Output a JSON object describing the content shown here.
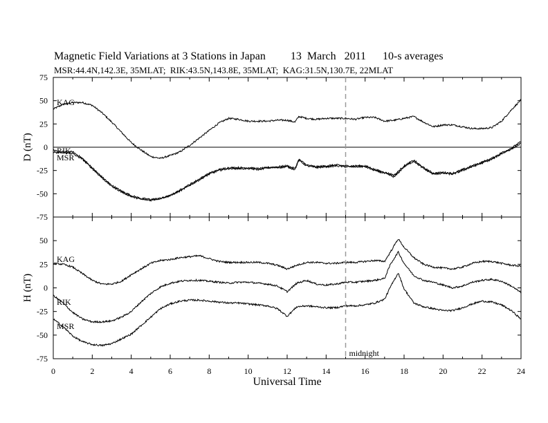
{
  "header": {
    "title": "Magnetic Field Variations at 3 Stations in Japan         13  March   2011      10-s averages",
    "subtitle": "MSR:44.4N,142.3E, 35MLAT;  RIK:43.5N,143.8E, 35MLAT;  KAG:31.5N,130.7E, 22MLAT"
  },
  "chart_data": [
    {
      "type": "line",
      "panel": "D",
      "ylabel": "D (nT)",
      "ylim": [
        -75,
        75
      ],
      "yticks": [
        75,
        50,
        25,
        0,
        -25,
        -50,
        -75
      ],
      "reference_line": 0,
      "series": [
        {
          "name": "KAG",
          "x": [
            0,
            0.5,
            1,
            1.5,
            2,
            2.5,
            3,
            3.5,
            4,
            4.5,
            5,
            5.5,
            6,
            6.5,
            7,
            7.5,
            8,
            8.5,
            9,
            9.5,
            10,
            10.5,
            11,
            11.5,
            12,
            12.4,
            12.6,
            13,
            13.5,
            14,
            14.5,
            15,
            15.5,
            16,
            16.5,
            17,
            17.5,
            18,
            18.5,
            19,
            19.5,
            20,
            20.5,
            21,
            21.5,
            22,
            22.5,
            23,
            23.5,
            24
          ],
          "values": [
            41,
            46,
            48,
            48,
            45,
            37,
            27,
            16,
            5,
            -3,
            -10,
            -12,
            -9,
            -5,
            2,
            10,
            18,
            26,
            31,
            30,
            28,
            28,
            28,
            29,
            29,
            27,
            33,
            31,
            30,
            31,
            31,
            31,
            30,
            32,
            32,
            28,
            29,
            31,
            33,
            27,
            22,
            24,
            24,
            22,
            20,
            20,
            21,
            28,
            40,
            51
          ]
        },
        {
          "name": "RIK",
          "x": [
            0,
            0.5,
            1,
            1.5,
            2,
            2.5,
            3,
            3.5,
            4,
            4.5,
            5,
            5.5,
            6,
            6.5,
            7,
            7.5,
            8,
            8.5,
            9,
            9.5,
            10,
            10.5,
            11,
            11.5,
            12,
            12.4,
            12.6,
            13,
            13.5,
            14,
            14.5,
            15,
            15.5,
            16,
            16.5,
            17,
            17.5,
            18,
            18.5,
            19,
            19.5,
            20,
            20.5,
            21,
            21.5,
            22,
            22.5,
            23,
            23.5,
            24
          ],
          "values": [
            -6,
            -5,
            -5,
            -12,
            -22,
            -32,
            -41,
            -47,
            -52,
            -55,
            -56,
            -55,
            -52,
            -46,
            -40,
            -34,
            -28,
            -24,
            -22,
            -22,
            -22,
            -23,
            -22,
            -21,
            -20,
            -23,
            -13,
            -19,
            -21,
            -20,
            -19,
            -20,
            -20,
            -20,
            -24,
            -27,
            -30,
            -20,
            -14,
            -22,
            -28,
            -27,
            -28,
            -24,
            -20,
            -16,
            -12,
            -6,
            -1,
            6
          ]
        },
        {
          "name": "MSR",
          "x": [
            0,
            0.5,
            1,
            1.5,
            2,
            2.5,
            3,
            3.5,
            4,
            4.5,
            5,
            5.5,
            6,
            6.5,
            7,
            7.5,
            8,
            8.5,
            9,
            9.5,
            10,
            10.5,
            11,
            11.5,
            12,
            12.4,
            12.6,
            13,
            13.5,
            14,
            14.5,
            15,
            15.5,
            16,
            16.5,
            17,
            17.5,
            18,
            18.5,
            19,
            19.5,
            20,
            20.5,
            21,
            21.5,
            22,
            22.5,
            23,
            23.5,
            24
          ],
          "values": [
            -3,
            -6,
            -7,
            -13,
            -23,
            -33,
            -42,
            -48,
            -53,
            -56,
            -57,
            -55,
            -52,
            -47,
            -41,
            -35,
            -29,
            -25,
            -23,
            -23,
            -23,
            -24,
            -22,
            -22,
            -21,
            -24,
            -14,
            -20,
            -22,
            -21,
            -20,
            -21,
            -21,
            -21,
            -25,
            -28,
            -32,
            -21,
            -15,
            -23,
            -29,
            -28,
            -29,
            -25,
            -21,
            -17,
            -13,
            -7,
            -2,
            4
          ]
        }
      ]
    },
    {
      "type": "line",
      "panel": "H",
      "ylabel": "H (nT)",
      "xlabel": "Universal Time",
      "xlim": [
        0,
        24
      ],
      "xticks": [
        0,
        2,
        4,
        6,
        8,
        10,
        12,
        14,
        16,
        18,
        20,
        22,
        24
      ],
      "ylim": [
        -75,
        75
      ],
      "yticks": [
        50,
        25,
        0,
        -25,
        -50,
        -75
      ],
      "annotation": {
        "x": 15,
        "label": "midnight"
      },
      "series": [
        {
          "name": "KAG",
          "x": [
            0,
            0.5,
            1,
            1.5,
            2,
            2.5,
            3,
            3.5,
            4,
            4.5,
            5,
            5.5,
            6,
            6.5,
            7,
            7.5,
            8,
            8.5,
            9,
            9.5,
            10,
            10.5,
            11,
            11.5,
            12,
            12.5,
            13,
            13.5,
            14,
            14.5,
            15,
            15.5,
            16,
            16.5,
            17,
            17.3,
            17.7,
            18,
            18.5,
            19,
            19.5,
            20,
            20.5,
            21,
            21.5,
            22,
            22.5,
            23,
            23.5,
            24
          ],
          "values": [
            26,
            25,
            22,
            15,
            8,
            4,
            4,
            7,
            14,
            20,
            26,
            29,
            30,
            32,
            33,
            34,
            31,
            28,
            27,
            27,
            27,
            27,
            26,
            24,
            20,
            24,
            27,
            27,
            26,
            26,
            27,
            27,
            28,
            29,
            28,
            38,
            52,
            43,
            32,
            25,
            22,
            21,
            20,
            22,
            26,
            28,
            28,
            26,
            24,
            23
          ]
        },
        {
          "name": "RIK",
          "x": [
            0,
            0.5,
            1,
            1.5,
            2,
            2.5,
            3,
            3.5,
            4,
            4.5,
            5,
            5.5,
            6,
            6.5,
            7,
            7.5,
            8,
            8.5,
            9,
            9.5,
            10,
            10.5,
            11,
            11.5,
            12,
            12.5,
            13,
            13.5,
            14,
            14.5,
            15,
            15.5,
            16,
            16.5,
            17,
            17.3,
            17.7,
            18,
            18.5,
            19,
            19.5,
            20,
            20.5,
            21,
            21.5,
            22,
            22.5,
            23,
            23.5,
            24
          ],
          "values": [
            -8,
            -16,
            -26,
            -33,
            -36,
            -36,
            -35,
            -31,
            -25,
            -15,
            -6,
            1,
            5,
            7,
            8,
            8,
            7,
            6,
            5,
            6,
            6,
            5,
            4,
            2,
            -4,
            5,
            8,
            4,
            3,
            4,
            6,
            6,
            7,
            8,
            10,
            25,
            38,
            26,
            13,
            8,
            6,
            3,
            0,
            2,
            6,
            8,
            9,
            7,
            2,
            -5
          ]
        },
        {
          "name": "MSR",
          "x": [
            0,
            0.5,
            1,
            1.5,
            2,
            2.5,
            3,
            3.5,
            4,
            4.5,
            5,
            5.5,
            6,
            6.5,
            7,
            7.5,
            8,
            8.5,
            9,
            9.5,
            10,
            10.5,
            11,
            11.5,
            12,
            12.5,
            13,
            13.5,
            14,
            14.5,
            15,
            15.5,
            16,
            16.5,
            17,
            17.3,
            17.7,
            18,
            18.5,
            19,
            19.5,
            20,
            20.5,
            21,
            21.5,
            22,
            22.5,
            23,
            23.5,
            24
          ],
          "values": [
            -33,
            -41,
            -51,
            -57,
            -60,
            -61,
            -59,
            -54,
            -49,
            -40,
            -31,
            -22,
            -17,
            -14,
            -13,
            -13,
            -14,
            -15,
            -16,
            -16,
            -17,
            -18,
            -19,
            -22,
            -30,
            -20,
            -19,
            -20,
            -21,
            -21,
            -19,
            -19,
            -18,
            -16,
            -12,
            1,
            16,
            -1,
            -16,
            -20,
            -22,
            -24,
            -24,
            -21,
            -17,
            -14,
            -15,
            -18,
            -24,
            -33
          ]
        }
      ]
    }
  ]
}
